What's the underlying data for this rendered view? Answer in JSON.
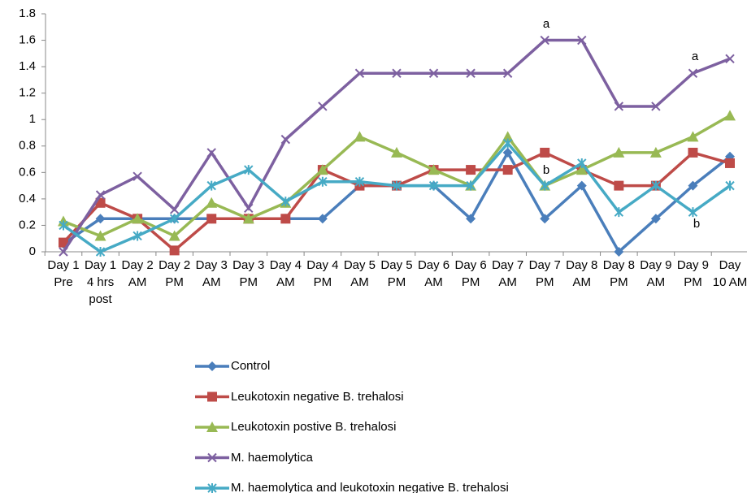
{
  "chart_data": {
    "type": "line",
    "categories": [
      "Day 1 Pre",
      "Day 1 4 hrs post",
      "Day 2 AM",
      "Day 2 PM",
      "Day 3 AM",
      "Day 3 PM",
      "Day 4 AM",
      "Day 4 PM",
      "Day 5 AM",
      "Day 5 PM",
      "Day 6 AM",
      "Day 6 PM",
      "Day 7 AM",
      "Day 7 PM",
      "Day 8 AM",
      "Day 8 PM",
      "Day 9 AM",
      "Day 9 PM",
      "Day 10 AM"
    ],
    "series": [
      {
        "name": "Control",
        "color": "#4a7ebb",
        "marker": "diamond",
        "values": [
          0.06,
          0.25,
          0.25,
          0.25,
          0.25,
          0.25,
          0.25,
          0.25,
          0.5,
          0.5,
          0.5,
          0.25,
          0.75,
          0.25,
          0.5,
          0,
          0.25,
          0.5,
          0.72
        ]
      },
      {
        "name": "Leukotoxin negative B. trehalosi",
        "color": "#be4b48",
        "marker": "square",
        "values": [
          0.07,
          0.37,
          0.25,
          0.01,
          0.25,
          0.25,
          0.25,
          0.62,
          0.5,
          0.5,
          0.62,
          0.62,
          0.62,
          0.75,
          0.62,
          0.5,
          0.5,
          0.75,
          0.67
        ]
      },
      {
        "name": "Leukotoxin postive B. trehalosi",
        "color": "#98b954",
        "marker": "triangle",
        "values": [
          0.23,
          0.12,
          0.25,
          0.12,
          0.37,
          0.25,
          0.37,
          0.62,
          0.87,
          0.75,
          0.62,
          0.5,
          0.87,
          0.5,
          0.62,
          0.75,
          0.75,
          0.87,
          1.03
        ]
      },
      {
        "name": "M. haemolytica",
        "color": "#7d60a0",
        "marker": "x",
        "values": [
          0,
          0.43,
          0.57,
          0.32,
          0.75,
          0.33,
          0.85,
          1.1,
          1.35,
          1.35,
          1.35,
          1.35,
          1.35,
          1.6,
          1.6,
          1.1,
          1.1,
          1.35,
          1.46
        ]
      },
      {
        "name": "M. haemolytica and leukotoxin negative B. trehalosi",
        "color": "#46aac5",
        "marker": "star",
        "values": [
          0.2,
          0,
          0.12,
          0.25,
          0.5,
          0.62,
          0.38,
          0.53,
          0.53,
          0.5,
          0.5,
          0.5,
          0.82,
          0.5,
          0.67,
          0.3,
          0.5,
          0.3,
          0.5
        ]
      }
    ],
    "ylim": [
      0,
      1.8
    ],
    "yticks": [
      0,
      0.2,
      0.4,
      0.6,
      0.8,
      1,
      1.2,
      1.4,
      1.6,
      1.8
    ],
    "grid": false,
    "annotations": [
      "a",
      "b",
      "a",
      "b"
    ]
  }
}
